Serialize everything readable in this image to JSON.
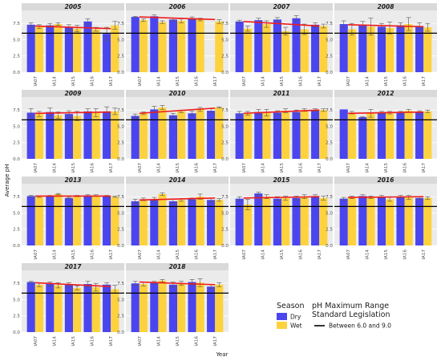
{
  "colors": {
    "dry": "#4b45f0",
    "wet": "#fdd23e",
    "trend": "#ee1c1c",
    "reference": "#000000",
    "panel_background": "#ebebeb",
    "strip_background": "#d9d9d9"
  },
  "legend": {
    "season_title": "Season",
    "season_items": [
      "Dry",
      "Wet"
    ],
    "standard_title_line1": "pH Maximum Range",
    "standard_title_line2": "Standard Legislation",
    "standard_item": "Between 6.0 and 9.0"
  },
  "chart_data": {
    "type": "bar",
    "xlabel": "Year",
    "ylabel": "Average pH",
    "ylim": [
      0,
      9.5
    ],
    "yticks": [
      0.0,
      2.5,
      5.0,
      7.5
    ],
    "ytick_labels": [
      "0.0",
      "2.5",
      "5.0",
      "7.5"
    ],
    "reference_line": 6.0,
    "categories": [
      "IA07",
      "IA14",
      "IA15",
      "IA16",
      "IA17"
    ],
    "facet_label_hint": "panel title is the year",
    "panels": [
      {
        "title": "2005",
        "series": [
          {
            "name": "Dry",
            "values": [
              7.3,
              7.2,
              6.9,
              7.8,
              5.9
            ],
            "errors": [
              0.3,
              0.3,
              0.4,
              0.4,
              1.0
            ]
          },
          {
            "name": "Wet",
            "values": [
              7.0,
              7.4,
              6.7,
              6.6,
              7.2
            ],
            "errors": [
              0.3,
              0.2,
              0.5,
              0.3,
              0.6
            ]
          }
        ],
        "trend": [
          7.1,
          6.7
        ]
      },
      {
        "title": "2006",
        "series": [
          {
            "name": "Dry",
            "values": [
              8.5,
              8.6,
              8.1,
              8.3,
              null
            ],
            "errors": [
              0.1,
              0.2,
              0.2,
              0.2,
              null
            ]
          },
          {
            "name": "Wet",
            "values": [
              8.0,
              7.7,
              7.9,
              8.1,
              7.8
            ],
            "errors": [
              0.2,
              0.2,
              0.3,
              0.2,
              0.3
            ]
          }
        ],
        "trend": [
          8.5,
          8.1
        ]
      },
      {
        "title": "2007",
        "series": [
          {
            "name": "Dry",
            "values": [
              7.8,
              8.0,
              8.1,
              8.3,
              7.3
            ],
            "errors": [
              0.2,
              0.3,
              0.3,
              0.4,
              0.3
            ]
          },
          {
            "name": "Wet",
            "values": [
              6.7,
              7.4,
              6.3,
              6.6,
              7.1
            ],
            "errors": [
              0.4,
              0.5,
              0.6,
              0.8,
              0.3
            ]
          }
        ],
        "trend": [
          7.8,
          7.1
        ]
      },
      {
        "title": "2008",
        "series": [
          {
            "name": "Dry",
            "values": [
              7.4,
              7.3,
              7.0,
              7.2,
              7.1
            ],
            "errors": [
              0.5,
              0.5,
              0.5,
              0.4,
              0.5
            ]
          },
          {
            "name": "Wet",
            "values": [
              6.6,
              7.0,
              6.8,
              7.4,
              6.9
            ],
            "errors": [
              0.9,
              1.3,
              0.9,
              1.0,
              0.6
            ]
          }
        ],
        "trend": [
          7.3,
          7.0
        ]
      },
      {
        "title": "2009",
        "series": [
          {
            "name": "Dry",
            "values": [
              7.1,
              7.2,
              6.9,
              7.3,
              7.3
            ],
            "errors": [
              0.6,
              0.6,
              0.5,
              0.4,
              0.7
            ]
          },
          {
            "name": "Wet",
            "values": [
              6.9,
              6.7,
              6.6,
              7.1,
              7.3
            ],
            "errors": [
              0.4,
              0.5,
              0.7,
              0.6,
              0.5
            ]
          }
        ],
        "trend": [
          7.0,
          7.2
        ]
      },
      {
        "title": "2010",
        "series": [
          {
            "name": "Dry",
            "values": [
              6.6,
              7.6,
              6.7,
              7.0,
              7.4
            ],
            "errors": [
              0.3,
              0.5,
              0.3,
              0.3,
              0.3
            ]
          },
          {
            "name": "Wet",
            "values": [
              7.0,
              7.9,
              7.3,
              7.6,
              7.9
            ],
            "errors": [
              0.2,
              0.3,
              0.2,
              0.3,
              0.1
            ]
          }
        ],
        "trend": [
          7.0,
          7.8
        ]
      },
      {
        "title": "2011",
        "series": [
          {
            "name": "Dry",
            "values": [
              7.0,
              7.2,
              7.1,
              7.2,
              7.5
            ],
            "errors": [
              0.3,
              0.4,
              0.3,
              0.3,
              0.2
            ]
          },
          {
            "name": "Wet",
            "values": [
              7.0,
              7.1,
              7.4,
              7.5,
              7.5
            ],
            "errors": [
              0.3,
              0.5,
              0.3,
              0.2,
              0.2
            ]
          }
        ],
        "trend": [
          7.0,
          7.5
        ]
      },
      {
        "title": "2012",
        "series": [
          {
            "name": "Dry",
            "values": [
              7.6,
              6.4,
              7.1,
              7.1,
              7.1
            ],
            "errors": [
              0.0,
              0.1,
              0.2,
              0.2,
              0.3
            ]
          },
          {
            "name": "Wet",
            "values": [
              7.1,
              7.0,
              7.1,
              7.4,
              7.3
            ],
            "errors": [
              0.2,
              0.6,
              0.2,
              0.2,
              0.2
            ]
          }
        ],
        "trend": [
          7.0,
          7.2
        ]
      },
      {
        "title": "2013",
        "series": [
          {
            "name": "Dry",
            "values": [
              7.6,
              7.6,
              7.3,
              7.7,
              7.6
            ],
            "errors": [
              0.1,
              0.1,
              0.1,
              0.1,
              0.1
            ]
          },
          {
            "name": "Wet",
            "values": [
              7.5,
              7.9,
              7.6,
              7.7,
              7.5
            ],
            "errors": [
              0.1,
              0.1,
              0.1,
              0.1,
              0.1
            ]
          }
        ],
        "trend": [
          7.6,
          7.6
        ]
      },
      {
        "title": "2014",
        "series": [
          {
            "name": "Dry",
            "values": [
              6.8,
              7.1,
              6.8,
              7.1,
              7.0
            ],
            "errors": [
              0.3,
              0.3,
              0.3,
              0.2,
              0.3
            ]
          },
          {
            "name": "Wet",
            "values": [
              7.1,
              7.9,
              7.0,
              7.5,
              7.0
            ],
            "errors": [
              0.2,
              0.2,
              0.2,
              0.4,
              0.2
            ]
          }
        ],
        "trend": [
          7.0,
          7.3
        ]
      },
      {
        "title": "2015",
        "series": [
          {
            "name": "Dry",
            "values": [
              7.2,
              8.0,
              7.2,
              7.3,
              7.6
            ],
            "errors": [
              0.3,
              0.2,
              0.3,
              0.3,
              0.2
            ]
          },
          {
            "name": "Wet",
            "values": [
              6.3,
              7.5,
              7.3,
              7.5,
              7.3
            ],
            "errors": [
              0.8,
              0.3,
              0.3,
              0.3,
              0.3
            ]
          }
        ],
        "trend": [
          7.3,
          7.5
        ]
      },
      {
        "title": "2016",
        "series": [
          {
            "name": "Dry",
            "values": [
              7.2,
              7.6,
              7.5,
              7.5,
              7.3
            ],
            "errors": [
              0.2,
              0.2,
              0.2,
              0.2,
              0.2
            ]
          },
          {
            "name": "Wet",
            "values": [
              7.4,
              7.4,
              7.1,
              7.4,
              7.3
            ],
            "errors": [
              0.2,
              0.2,
              0.3,
              0.3,
              0.2
            ]
          }
        ],
        "trend": [
          7.4,
          7.5
        ]
      },
      {
        "title": "2017",
        "series": [
          {
            "name": "Dry",
            "values": [
              7.7,
              7.4,
              7.3,
              7.4,
              7.3
            ],
            "errors": [
              0.1,
              0.3,
              0.3,
              0.4,
              0.3
            ]
          },
          {
            "name": "Wet",
            "values": [
              7.3,
              7.2,
              6.8,
              6.9,
              6.6
            ],
            "errors": [
              0.3,
              0.4,
              0.3,
              0.6,
              0.6
            ]
          }
        ],
        "trend": [
          7.6,
          7.0
        ]
      },
      {
        "title": "2018",
        "series": [
          {
            "name": "Dry",
            "values": [
              7.5,
              7.6,
              7.3,
              7.7,
              7.0
            ],
            "errors": [
              0.3,
              0.2,
              0.4,
              0.4,
              0.3
            ]
          },
          {
            "name": "Wet",
            "values": [
              7.4,
              7.9,
              7.5,
              7.6,
              7.3
            ],
            "errors": [
              0.3,
              0.2,
              0.3,
              0.6,
              0.3
            ]
          }
        ],
        "trend": [
          7.7,
          7.3
        ]
      }
    ]
  }
}
